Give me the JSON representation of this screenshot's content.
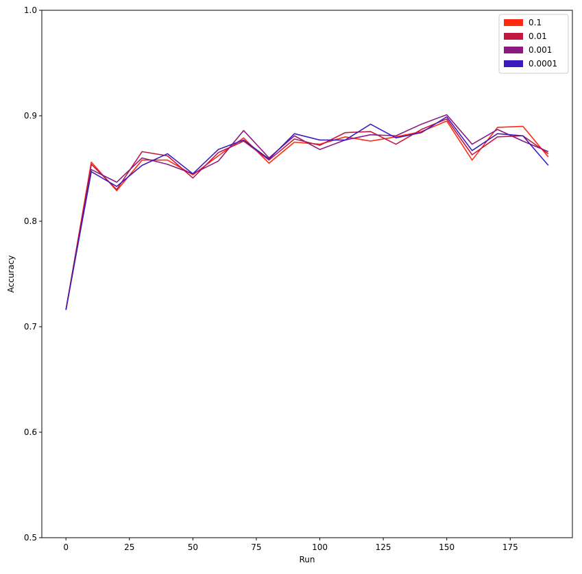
{
  "chart_data": {
    "type": "line",
    "title": "",
    "xlabel": "Run",
    "ylabel": "Accuracy",
    "xlim": [
      -9.5,
      199.5
    ],
    "ylim": [
      0.5,
      1.0
    ],
    "x_ticks": [
      0,
      25,
      50,
      75,
      100,
      125,
      150,
      175
    ],
    "y_ticks": [
      0.5,
      0.6,
      0.7,
      0.8,
      0.9,
      1.0
    ],
    "x_tick_labels": [
      "0",
      "25",
      "50",
      "75",
      "100",
      "125",
      "150",
      "175"
    ],
    "y_tick_labels": [
      "0.5",
      "0.6",
      "0.7",
      "0.8",
      "0.9",
      "1.0"
    ],
    "grid": false,
    "legend_position": "top-right",
    "x": [
      0,
      10,
      20,
      30,
      40,
      50,
      60,
      70,
      80,
      90,
      100,
      110,
      120,
      130,
      140,
      150,
      160,
      170,
      180,
      190
    ],
    "series": [
      {
        "name": "0.1",
        "color": "#ff2a0f",
        "values": [
          0.716,
          0.856,
          0.829,
          0.858,
          0.858,
          0.844,
          0.862,
          0.879,
          0.855,
          0.875,
          0.873,
          0.88,
          0.876,
          0.88,
          0.885,
          0.895,
          0.858,
          0.889,
          0.89,
          0.861
        ]
      },
      {
        "name": "0.01",
        "color": "#c0183f",
        "values": [
          0.716,
          0.854,
          0.83,
          0.866,
          0.862,
          0.841,
          0.865,
          0.876,
          0.858,
          0.878,
          0.872,
          0.884,
          0.885,
          0.873,
          0.887,
          0.897,
          0.863,
          0.88,
          0.881,
          0.864
        ]
      },
      {
        "name": "0.001",
        "color": "#8a1a80",
        "values": [
          0.716,
          0.849,
          0.837,
          0.86,
          0.854,
          0.845,
          0.857,
          0.886,
          0.86,
          0.881,
          0.868,
          0.877,
          0.882,
          0.881,
          0.892,
          0.901,
          0.873,
          0.887,
          0.876,
          0.866
        ]
      },
      {
        "name": "0.0001",
        "color": "#3d1abe",
        "values": [
          0.716,
          0.847,
          0.833,
          0.853,
          0.864,
          0.845,
          0.868,
          0.877,
          0.859,
          0.883,
          0.877,
          0.877,
          0.892,
          0.879,
          0.884,
          0.899,
          0.867,
          0.883,
          0.881,
          0.853
        ]
      }
    ]
  }
}
